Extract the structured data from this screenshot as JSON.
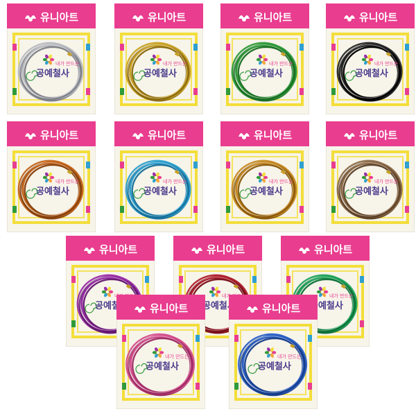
{
  "brand": "유니아트",
  "label_small": "내가 만드는",
  "label_big": "공예철사",
  "colors": {
    "header_pink": "#e93d8f",
    "card_bg": "#f7f4ea",
    "stripe_yellow": "#f3de3a",
    "label_text": "#4a3c8c"
  },
  "packs": [
    {
      "wire": "#b9bcc2",
      "wire_dark": "#7d8087"
    },
    {
      "wire": "#c9a227",
      "wire_dark": "#8a6a10"
    },
    {
      "wire": "#2f9a3a",
      "wire_dark": "#196d23"
    },
    {
      "wire": "#2a2a2a",
      "wire_dark": "#000000"
    },
    {
      "wire": "#c4661e",
      "wire_dark": "#86400c"
    },
    {
      "wire": "#2fa0cf",
      "wire_dark": "#16709a"
    },
    {
      "wire": "#c68a24",
      "wire_dark": "#8a5a0c"
    },
    {
      "wire": "#8c6a48",
      "wire_dark": "#5c4128"
    },
    {
      "wire": "#9a2ea6",
      "wire_dark": "#641771"
    },
    {
      "wire": "#b0202e",
      "wire_dark": "#78101a"
    },
    {
      "wire": "#1fa35a",
      "wire_dark": "#0f6f37"
    },
    {
      "wire": "#d6508e",
      "wire_dark": "#9c2b63"
    },
    {
      "wire": "#2a5fc4",
      "wire_dark": "#163c8a"
    }
  ]
}
